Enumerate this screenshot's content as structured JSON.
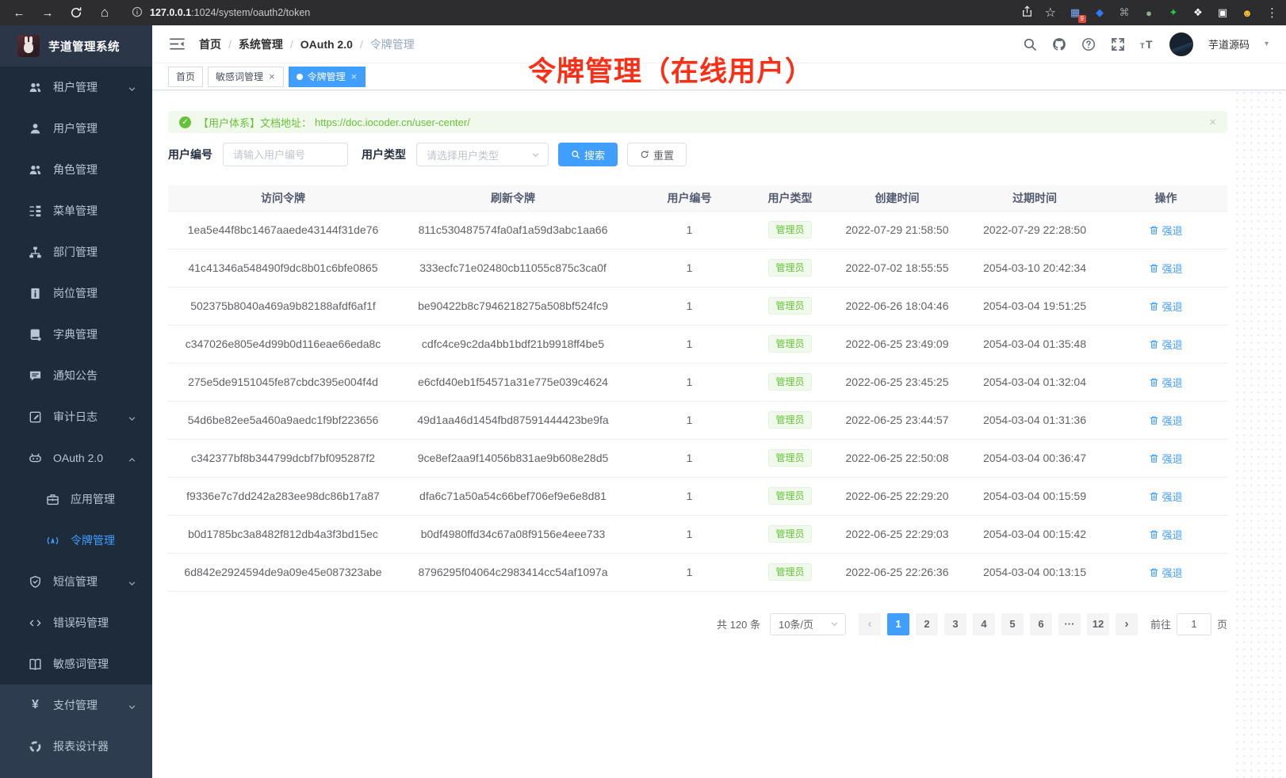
{
  "browser": {
    "url_host": "127.0.0.1",
    "url_rest": ":1024/system/oauth2/token",
    "extensions": [
      {
        "key": "grid",
        "glyph": "▦",
        "color": "#7baaf7",
        "badge": "9"
      },
      {
        "key": "gem",
        "glyph": "◆",
        "color": "#2f7cf6"
      },
      {
        "key": "command",
        "glyph": "⌘",
        "color": "#9aa0a6"
      },
      {
        "key": "record",
        "glyph": "●",
        "color": "#8ab48a"
      },
      {
        "key": "star",
        "glyph": "✦",
        "color": "#27c93f"
      },
      {
        "key": "puzzle",
        "glyph": "❖",
        "color": "#ffffff"
      },
      {
        "key": "window",
        "glyph": "▣",
        "color": "#ffffff"
      },
      {
        "key": "emoji",
        "glyph": "☻",
        "color": "#fbc02d"
      }
    ]
  },
  "sidebar": {
    "logo_title": "芋道管理系统",
    "items": [
      {
        "key": "tenant",
        "label": "租户管理",
        "icon": "people",
        "arrow": "down"
      },
      {
        "key": "user",
        "label": "用户管理",
        "icon": "user"
      },
      {
        "key": "role",
        "label": "角色管理",
        "icon": "people"
      },
      {
        "key": "menu",
        "label": "菜单管理",
        "icon": "tree"
      },
      {
        "key": "dept",
        "label": "部门管理",
        "icon": "org"
      },
      {
        "key": "post",
        "label": "岗位管理",
        "icon": "badge"
      },
      {
        "key": "dict",
        "label": "字典管理",
        "icon": "dict"
      },
      {
        "key": "notice",
        "label": "通知公告",
        "icon": "chat"
      },
      {
        "key": "audit-log",
        "label": "审计日志",
        "icon": "audit",
        "arrow": "down"
      },
      {
        "key": "oauth2",
        "label": "OAuth 2.0",
        "icon": "robot",
        "arrow": "up"
      },
      {
        "key": "oauth2-app",
        "label": "应用管理",
        "icon": "briefcase",
        "child": true
      },
      {
        "key": "oauth2-token",
        "label": "令牌管理",
        "icon": "signal",
        "child": true,
        "active": true
      },
      {
        "key": "sms",
        "label": "短信管理",
        "icon": "shield",
        "arrow": "down"
      },
      {
        "key": "error-code",
        "label": "错误码管理",
        "icon": "code"
      },
      {
        "key": "sensitive-word",
        "label": "敏感词管理",
        "icon": "book"
      },
      {
        "key": "pay",
        "label": "支付管理",
        "icon": "yen",
        "arrow": "down",
        "section2": true
      },
      {
        "key": "report-designer",
        "label": "报表设计器",
        "icon": "chart",
        "section2": true
      }
    ]
  },
  "header": {
    "breadcrumb": [
      "首页",
      "系统管理",
      "OAuth 2.0",
      "令牌管理"
    ],
    "separator": "/",
    "user_name": "芋道源码"
  },
  "tabs": [
    {
      "key": "home",
      "label": "首页",
      "closable": false,
      "active": false
    },
    {
      "key": "sensitive-word",
      "label": "敏感词管理",
      "closable": true,
      "active": false
    },
    {
      "key": "token",
      "label": "令牌管理",
      "closable": true,
      "active": true
    }
  ],
  "annotation": {
    "text": "令牌管理（在线用户）"
  },
  "alert": {
    "prefix": "【用户体系】文档地址：",
    "link": "https://doc.iocoder.cn/user-center/"
  },
  "filters": {
    "user_id_label": "用户编号",
    "user_id_placeholder": "请输入用户编号",
    "user_type_label": "用户类型",
    "user_type_placeholder": "请选择用户类型",
    "search_label": "搜索",
    "reset_label": "重置"
  },
  "table": {
    "columns": [
      "访问令牌",
      "刷新令牌",
      "用户编号",
      "用户类型",
      "创建时间",
      "过期时间",
      "操作"
    ],
    "action_label": "强退",
    "rows": [
      {
        "access": "1ea5e44f8bc1467aaede43144f31de76",
        "refresh": "811c530487574fa0af1a59d3abc1aa66",
        "user_id": "1",
        "user_type": "管理员",
        "created": "2022-07-29 21:58:50",
        "expires": "2022-07-29 22:28:50"
      },
      {
        "access": "41c41346a548490f9dc8b01c6bfe0865",
        "refresh": "333ecfc71e02480cb11055c875c3ca0f",
        "user_id": "1",
        "user_type": "管理员",
        "created": "2022-07-02 18:55:55",
        "expires": "2054-03-10 20:42:34"
      },
      {
        "access": "502375b8040a469a9b82188afdf6af1f",
        "refresh": "be90422b8c7946218275a508bf524fc9",
        "user_id": "1",
        "user_type": "管理员",
        "created": "2022-06-26 18:04:46",
        "expires": "2054-03-04 19:51:25"
      },
      {
        "access": "c347026e805e4d99b0d116eae66eda8c",
        "refresh": "cdfc4ce9c2da4bb1bdf21b9918ff4be5",
        "user_id": "1",
        "user_type": "管理员",
        "created": "2022-06-25 23:49:09",
        "expires": "2054-03-04 01:35:48"
      },
      {
        "access": "275e5de9151045fe87cbdc395e004f4d",
        "refresh": "e6cfd40eb1f54571a31e775e039c4624",
        "user_id": "1",
        "user_type": "管理员",
        "created": "2022-06-25 23:45:25",
        "expires": "2054-03-04 01:32:04"
      },
      {
        "access": "54d6be82ee5a460a9aedc1f9bf223656",
        "refresh": "49d1aa46d1454fbd87591444423be9fa",
        "user_id": "1",
        "user_type": "管理员",
        "created": "2022-06-25 23:44:57",
        "expires": "2054-03-04 01:31:36"
      },
      {
        "access": "c342377bf8b344799dcbf7bf095287f2",
        "refresh": "9ce8ef2aa9f14056b831ae9b608e28d5",
        "user_id": "1",
        "user_type": "管理员",
        "created": "2022-06-25 22:50:08",
        "expires": "2054-03-04 00:36:47"
      },
      {
        "access": "f9336e7c7dd242a283ee98dc86b17a87",
        "refresh": "dfa6c71a50a54c66bef706ef9e6e8d81",
        "user_id": "1",
        "user_type": "管理员",
        "created": "2022-06-25 22:29:20",
        "expires": "2054-03-04 00:15:59"
      },
      {
        "access": "b0d1785bc3a8482f812db4a3f3bd15ec",
        "refresh": "b0df4980ffd34c67a08f9156e4eee733",
        "user_id": "1",
        "user_type": "管理员",
        "created": "2022-06-25 22:29:03",
        "expires": "2054-03-04 00:15:42"
      },
      {
        "access": "6d842e2924594de9a09e45e087323abe",
        "refresh": "8796295f04064c2983414cc54af1097a",
        "user_id": "1",
        "user_type": "管理员",
        "created": "2022-06-25 22:26:36",
        "expires": "2054-03-04 00:13:15"
      }
    ]
  },
  "pagination": {
    "total_label": "共 120 条",
    "size_label": "10条/页",
    "prev_glyph": "‹",
    "next_glyph": "›",
    "pages": [
      {
        "label": "1",
        "active": true
      },
      {
        "label": "2"
      },
      {
        "label": "3"
      },
      {
        "label": "4"
      },
      {
        "label": "5"
      },
      {
        "label": "6"
      },
      {
        "label": "···",
        "ellipsis": true
      },
      {
        "label": "12"
      }
    ],
    "goto_label": "前往",
    "goto_value": "1",
    "page_unit": "页"
  },
  "icon_glyphs": {
    "close": "×",
    "check": "✓",
    "back": "←",
    "forward": "→",
    "home": "⌂",
    "star": "☆",
    "menu_dots": "⋮",
    "caret": "▾"
  }
}
